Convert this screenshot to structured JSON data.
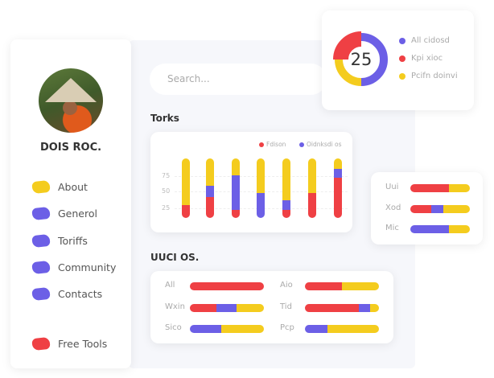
{
  "colors": {
    "red": "#ef4044",
    "purple": "#6c5fe6",
    "yellow": "#f4cc1e"
  },
  "profile": {
    "name": "DOIS ROC."
  },
  "sidebar": {
    "items": [
      {
        "label": "About",
        "color": "yellow"
      },
      {
        "label": "Generol",
        "color": "purple"
      },
      {
        "label": "Toriffs",
        "color": "purple"
      },
      {
        "label": "Community",
        "color": "purple"
      },
      {
        "label": "Contacts",
        "color": "purple"
      },
      {
        "label": "Free Tools",
        "color": "red"
      }
    ]
  },
  "search": {
    "placeholder": "Search..."
  },
  "donut": {
    "value": "25",
    "segments": [
      {
        "label": "All cidosd",
        "color": "purple",
        "fraction": 0.5
      },
      {
        "label": "Kpi xioc",
        "color": "red",
        "fraction": 0.25
      },
      {
        "label": "Pcifn doinvi",
        "color": "yellow",
        "fraction": 0.25
      }
    ]
  },
  "torks": {
    "title": "Torks",
    "legend": [
      {
        "label": "Fdison",
        "color": "red"
      },
      {
        "label": "Oidnksdi os",
        "color": "purple"
      }
    ],
    "yticks": [
      "75",
      "50",
      "25"
    ]
  },
  "chart_data": {
    "type": "bar",
    "stacked": true,
    "yticks": [
      25,
      50,
      75
    ],
    "series_order": [
      "red",
      "purple",
      "yellow"
    ],
    "bars": [
      [
        0.22,
        0,
        0.78
      ],
      [
        0.35,
        0.19,
        0.46
      ],
      [
        0.14,
        0.57,
        0.29
      ],
      [
        0,
        0.42,
        0.58
      ],
      [
        0.14,
        0.16,
        0.7
      ],
      [
        0.42,
        0,
        0.58
      ],
      [
        0.68,
        0.15,
        0.17
      ]
    ]
  },
  "side_bars": [
    {
      "label": "Uui",
      "segments": [
        0.65,
        0,
        0.35
      ]
    },
    {
      "label": "Xod",
      "segments": [
        0.35,
        0.2,
        0.45
      ]
    },
    {
      "label": "Mic",
      "segments": [
        0,
        0.65,
        0.35
      ]
    }
  ],
  "uuci": {
    "title": "UUCI OS.",
    "rows": [
      {
        "label": "All",
        "segments": [
          1,
          0,
          0
        ]
      },
      {
        "label": "Aio",
        "segments": [
          0.5,
          0,
          0.5
        ]
      },
      {
        "label": "Wxin",
        "segments": [
          0.36,
          0.27,
          0.37
        ]
      },
      {
        "label": "Tid",
        "segments": [
          0.73,
          0.15,
          0.12
        ]
      },
      {
        "label": "Sico",
        "segments": [
          0,
          0.42,
          0.58
        ]
      },
      {
        "label": "Pcp",
        "segments": [
          0,
          0.3,
          0.7
        ]
      }
    ]
  }
}
